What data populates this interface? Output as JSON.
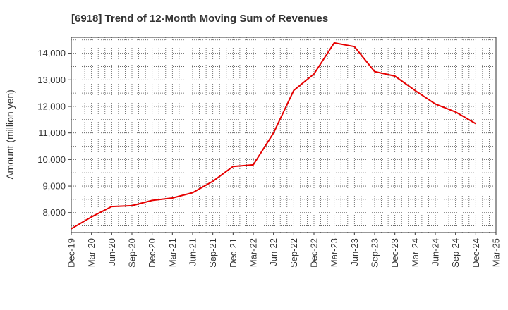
{
  "chart_data": {
    "type": "line",
    "title": "[6918]  Trend of 12-Month Moving Sum of Revenues",
    "xlabel": "",
    "ylabel": "Amount (million yen)",
    "ylim": [
      7250,
      14600
    ],
    "yticks": [
      8000,
      9000,
      10000,
      11000,
      12000,
      13000,
      14000
    ],
    "ytick_labels": [
      "8,000",
      "9,000",
      "10,000",
      "11,000",
      "12,000",
      "13,000",
      "14,000"
    ],
    "categories": [
      "Dec-19",
      "Mar-20",
      "Jun-20",
      "Sep-20",
      "Dec-20",
      "Mar-21",
      "Jun-21",
      "Sep-21",
      "Dec-21",
      "Mar-22",
      "Jun-22",
      "Sep-22",
      "Dec-22",
      "Mar-23",
      "Jun-23",
      "Sep-23",
      "Dec-23",
      "Mar-24",
      "Jun-24",
      "Sep-24",
      "Dec-24",
      "Mar-25"
    ],
    "grid": true,
    "series": [
      {
        "color": "#e60000",
        "values": [
          7390,
          7840,
          8230,
          8260,
          8460,
          8550,
          8750,
          9180,
          9740,
          9800,
          11000,
          12600,
          13220,
          14390,
          14250,
          13310,
          13140,
          12600,
          12090,
          11790,
          11350,
          null
        ]
      }
    ]
  }
}
